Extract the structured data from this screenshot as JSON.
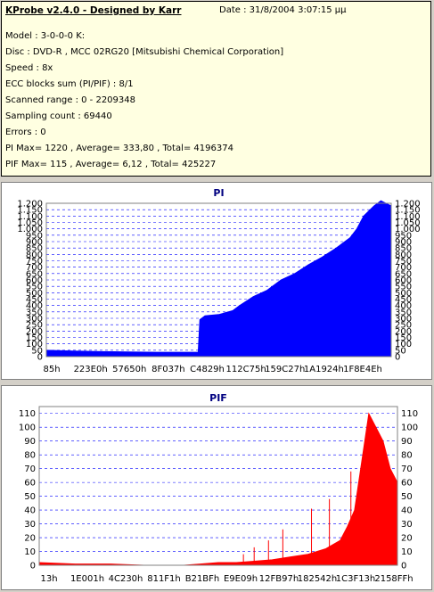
{
  "info": {
    "title": "KProbe v2.4.0 - Designed by Karr",
    "date": "Date : 31/8/2004 3:07:15 μμ",
    "lines": [
      "Model : 3-0-0-0 K:",
      "Disc : DVD-R , MCC 02RG20   [Mitsubishi Chemical Corporation]",
      "Speed : 8x",
      "ECC blocks sum (PI/PIF) : 8/1",
      "Scanned range : 0 - 2209348",
      "Sampling count : 69440",
      "Errors : 0",
      "PI Max= 1220 , Average= 333,80 , Total= 4196374",
      "PIF Max= 115 , Average= 6,12 , Total= 425227"
    ]
  },
  "colors": {
    "pi": "#0000ff",
    "pif": "#ff0000",
    "grid": "#0000ff",
    "title": "#000080"
  },
  "chart_data": [
    {
      "type": "area",
      "title": "PI",
      "ylim": [
        0,
        1200
      ],
      "yticks": [
        0,
        50,
        100,
        150,
        200,
        250,
        300,
        350,
        400,
        450,
        500,
        550,
        600,
        650,
        700,
        750,
        800,
        850,
        900,
        950,
        1000,
        1050,
        1100,
        1150,
        1200
      ],
      "ytick_labels": [
        "0",
        "50",
        "100",
        "150",
        "200",
        "250",
        "300",
        "350",
        "400",
        "450",
        "500",
        "550",
        "600",
        "650",
        "700",
        "750",
        "800",
        "850",
        "900",
        "950",
        "1.000",
        "1.050",
        "1.100",
        "1.150",
        "1.200"
      ],
      "xtick_labels": [
        "85h",
        "223E0h",
        "57650h",
        "8F037h",
        "C4829h",
        "112C75h",
        "159C27h",
        "1A1924h",
        "1F8E4Eh"
      ],
      "x": [
        0,
        0.08,
        0.16,
        0.24,
        0.32,
        0.4,
        0.44,
        0.445,
        0.46,
        0.5,
        0.54,
        0.56,
        0.6,
        0.64,
        0.68,
        0.72,
        0.76,
        0.8,
        0.84,
        0.88,
        0.9,
        0.92,
        0.95,
        0.97,
        1.0
      ],
      "values": [
        50,
        45,
        40,
        38,
        35,
        35,
        35,
        290,
        320,
        330,
        360,
        400,
        470,
        520,
        600,
        650,
        720,
        780,
        850,
        930,
        1000,
        1100,
        1180,
        1220,
        1180
      ],
      "grid": true
    },
    {
      "type": "area",
      "title": "PIF",
      "ylim": [
        0,
        115
      ],
      "yticks": [
        0,
        10,
        20,
        30,
        40,
        50,
        60,
        70,
        80,
        90,
        100,
        110
      ],
      "ytick_labels": [
        "0",
        "10",
        "20",
        "30",
        "40",
        "50",
        "60",
        "70",
        "80",
        "90",
        "100",
        "110"
      ],
      "xtick_labels": [
        "13h",
        "1E001h",
        "4C230h",
        "811F1h",
        "B21BFh",
        "E9E09h",
        "12FB97h",
        "182542h",
        "1C3F13h",
        "2158FFh"
      ],
      "x": [
        0,
        0.1,
        0.2,
        0.3,
        0.4,
        0.45,
        0.5,
        0.55,
        0.6,
        0.65,
        0.7,
        0.75,
        0.8,
        0.84,
        0.86,
        0.88,
        0.9,
        0.92,
        0.94,
        0.96,
        0.98,
        1.0
      ],
      "values": [
        2,
        1,
        1,
        0,
        0,
        1,
        2,
        2,
        3,
        4,
        6,
        8,
        12,
        18,
        28,
        40,
        75,
        110,
        100,
        90,
        70,
        60
      ],
      "spikes": [
        [
          0.57,
          8
        ],
        [
          0.6,
          13
        ],
        [
          0.64,
          18
        ],
        [
          0.68,
          26
        ],
        [
          0.76,
          41
        ],
        [
          0.81,
          48
        ],
        [
          0.87,
          68
        ],
        [
          0.9,
          52
        ]
      ],
      "grid": true
    }
  ]
}
